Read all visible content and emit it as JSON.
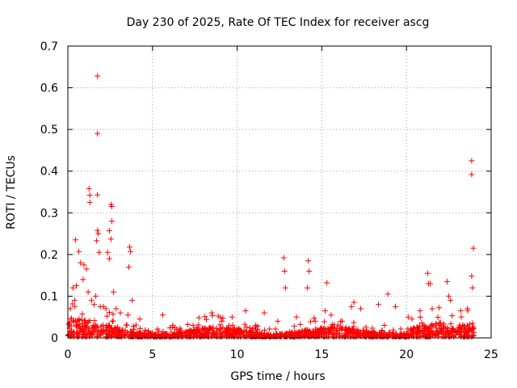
{
  "chart_data": {
    "type": "scatter",
    "title": "Day 230 of 2025, Rate Of TEC Index for receiver ascg",
    "xlabel": "GPS time / hours",
    "ylabel": "ROTI / TECUs",
    "xlim": [
      0,
      25
    ],
    "ylim": [
      0,
      0.7
    ],
    "xticks": [
      0,
      5,
      10,
      15,
      20,
      25
    ],
    "yticks": [
      0,
      0.1,
      0.2,
      0.3,
      0.4,
      0.5,
      0.6,
      0.7
    ],
    "ytick_labels": [
      "0",
      "0.1",
      "0.2",
      "0.3",
      "0.4",
      "0.5",
      "0.6",
      "0.7"
    ],
    "grid": true,
    "marker": "+",
    "color": "#ff0000",
    "series": [
      {
        "x": [
          1.75,
          1.75,
          23.85,
          23.85,
          1.25,
          1.3,
          1.75,
          1.3,
          2.55,
          2.6,
          2.6,
          1.75,
          2.45,
          1.8,
          2.55,
          1.7,
          0.45,
          0.65,
          1.85,
          2.35,
          3.65,
          3.7,
          2.45,
          23.95,
          12.75,
          14.2,
          0.75,
          0.95,
          3.6,
          1.1,
          12.8,
          14.25,
          21.25,
          23.85,
          22.4,
          15.3,
          0.3,
          0.5,
          1.2,
          1.65,
          2.7,
          3.8,
          12.85,
          14.15,
          16.9,
          21.3,
          22.5,
          23.9,
          18.9,
          0.4,
          1.55,
          2.1,
          2.85,
          3.55,
          4.25,
          5.6,
          8.5,
          9.7,
          10.5,
          11.6,
          13.5,
          15.2,
          16.75,
          17.3,
          18.35,
          19.35,
          20.8,
          21.4,
          22.6,
          23.2,
          0.15,
          0.9,
          1.4,
          2.25,
          3.1,
          6.2,
          7.4,
          9.1,
          11.1,
          12.4,
          14.6,
          16.2,
          18.7,
          20.1,
          23.6
        ],
        "y": [
          0.628,
          0.49,
          0.425,
          0.392,
          0.358,
          0.342,
          0.343,
          0.325,
          0.32,
          0.315,
          0.28,
          0.258,
          0.257,
          0.25,
          0.237,
          0.233,
          0.235,
          0.207,
          0.205,
          0.205,
          0.218,
          0.207,
          0.19,
          0.215,
          0.192,
          0.185,
          0.18,
          0.175,
          0.17,
          0.165,
          0.16,
          0.16,
          0.155,
          0.148,
          0.135,
          0.132,
          0.12,
          0.125,
          0.11,
          0.1,
          0.11,
          0.09,
          0.12,
          0.12,
          0.085,
          0.13,
          0.1,
          0.12,
          0.105,
          0.09,
          0.08,
          0.075,
          0.07,
          0.055,
          0.045,
          0.055,
          0.06,
          0.05,
          0.065,
          0.06,
          0.05,
          0.065,
          0.075,
          0.07,
          0.08,
          0.075,
          0.065,
          0.13,
          0.09,
          0.065,
          0.07,
          0.14,
          0.09,
          0.07,
          0.06,
          0.03,
          0.03,
          0.04,
          0.03,
          0.04,
          0.04,
          0.04,
          0.03,
          0.05,
          0.07
        ]
      }
    ]
  }
}
